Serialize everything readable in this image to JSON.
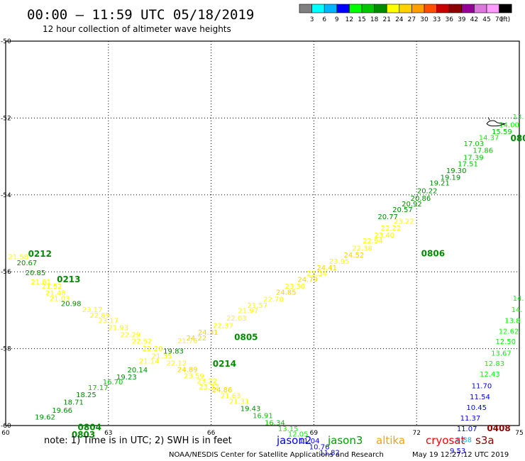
{
  "header": {
    "title": "00:00 – 11:59 UTC 05/18/2019",
    "subtitle": "12 hour collection of altimeter wave heights"
  },
  "colorbar": {
    "colors": [
      "#808080",
      "#00ffff",
      "#00b4ff",
      "#0000ff",
      "#00ff00",
      "#00c800",
      "#008c00",
      "#ffff00",
      "#ffd200",
      "#ffa000",
      "#ff5000",
      "#c80000",
      "#8c0000",
      "#960096",
      "#dc78dc",
      "#ff9bff",
      "#000000"
    ],
    "labels": [
      "3",
      "6",
      "9",
      "12",
      "15",
      "18",
      "21",
      "24",
      "27",
      "30",
      "33",
      "36",
      "39",
      "42",
      "45",
      "70"
    ],
    "unit": "(ft)"
  },
  "footer": {
    "note": "note:  1) Time is in UTC;  2) SWH is in feet",
    "satellites": [
      {
        "name": "jason2",
        "color": "#0000ff"
      },
      {
        "name": "jason3",
        "color": "#00a000"
      },
      {
        "name": "altika",
        "color": "#ffa000"
      },
      {
        "name": "cryosat",
        "color": "#ff0000"
      },
      {
        "name": "s3a",
        "color": "#8c0000"
      }
    ],
    "credit": "NOAA/NESDIS Center for Satellite Applications and Research",
    "timestamp": "May 19 12:27:12 UTC 2019"
  },
  "chart_data": {
    "type": "scatter",
    "xlim": [
      60,
      75
    ],
    "ylim": [
      -60,
      -50
    ],
    "x_ticks": [
      "60",
      "63",
      "66",
      "69",
      "72",
      "75"
    ],
    "y_ticks": [
      "-50",
      "-52",
      "-54",
      "-56",
      "-58",
      "-60"
    ],
    "grid": true,
    "observations": [
      {
        "x": 60.37,
        "y": -55.67,
        "v": "21.58"
      },
      {
        "x": 60.62,
        "y": -55.83,
        "v": "20.67"
      },
      {
        "x": 60.87,
        "y": -56.09,
        "v": "20.85"
      },
      {
        "x": 61.03,
        "y": -56.33,
        "v": "21.81"
      },
      {
        "x": 61.35,
        "y": -56.44,
        "v": "21.52"
      },
      {
        "x": 61.46,
        "y": -56.61,
        "v": "21.48"
      },
      {
        "x": 61.58,
        "y": -56.76,
        "v": "21.03"
      },
      {
        "x": 61.91,
        "y": -56.89,
        "v": "20.98"
      },
      {
        "x": 62.53,
        "y": -57.05,
        "v": "23.17"
      },
      {
        "x": 62.75,
        "y": -57.2,
        "v": "22.89"
      },
      {
        "x": 63.0,
        "y": -57.33,
        "v": "23.17"
      },
      {
        "x": 63.29,
        "y": -57.52,
        "v": "21.93"
      },
      {
        "x": 63.64,
        "y": -57.7,
        "v": "22.29"
      },
      {
        "x": 63.98,
        "y": -57.87,
        "v": "22.52"
      },
      {
        "x": 64.29,
        "y": -58.06,
        "v": "22.20"
      },
      {
        "x": 64.56,
        "y": -58.26,
        "v": "21.35"
      },
      {
        "x": 64.99,
        "y": -58.44,
        "v": "22.12"
      },
      {
        "x": 65.31,
        "y": -58.61,
        "v": "24.89"
      },
      {
        "x": 65.5,
        "y": -58.77,
        "v": "23.59"
      },
      {
        "x": 65.88,
        "y": -58.9,
        "v": "23.22"
      },
      {
        "x": 65.94,
        "y": -59.06,
        "v": "23.32"
      },
      {
        "x": 66.32,
        "y": -59.13,
        "v": "24.86"
      },
      {
        "x": 66.57,
        "y": -59.29,
        "v": "21.63"
      },
      {
        "x": 66.82,
        "y": -59.44,
        "v": "21.31"
      },
      {
        "x": 67.15,
        "y": -59.62,
        "v": "19.43"
      },
      {
        "x": 67.51,
        "y": -59.81,
        "v": "16.91"
      },
      {
        "x": 67.86,
        "y": -59.99,
        "v": "16.34"
      },
      {
        "x": 68.25,
        "y": -60.15,
        "v": "13.15"
      },
      {
        "x": 68.54,
        "y": -60.29,
        "v": "12.05"
      },
      {
        "x": 68.87,
        "y": -60.46,
        "v": "11.04"
      },
      {
        "x": 69.16,
        "y": -60.62,
        "v": "10.76"
      },
      {
        "x": 69.46,
        "y": -60.77,
        "v": "11.82"
      },
      {
        "x": 61.15,
        "y": -59.84,
        "v": "19.62"
      },
      {
        "x": 61.65,
        "y": -59.67,
        "v": "19.66"
      },
      {
        "x": 61.98,
        "y": -59.46,
        "v": "18.71"
      },
      {
        "x": 62.35,
        "y": -59.26,
        "v": "18.25"
      },
      {
        "x": 62.7,
        "y": -59.08,
        "v": "17.17"
      },
      {
        "x": 63.13,
        "y": -58.93,
        "v": "16.70"
      },
      {
        "x": 63.53,
        "y": -58.8,
        "v": "19.23"
      },
      {
        "x": 63.85,
        "y": -58.62,
        "v": "20.14"
      },
      {
        "x": 64.19,
        "y": -58.39,
        "v": "21.14"
      },
      {
        "x": 64.9,
        "y": -58.13,
        "v": "19.83"
      },
      {
        "x": 65.31,
        "y": -57.86,
        "v": "21.76"
      },
      {
        "x": 65.57,
        "y": -57.79,
        "v": "24.22"
      },
      {
        "x": 65.91,
        "y": -57.64,
        "v": "24.31"
      },
      {
        "x": 66.35,
        "y": -57.46,
        "v": "22.37"
      },
      {
        "x": 66.74,
        "y": -57.27,
        "v": "22.03"
      },
      {
        "x": 67.08,
        "y": -57.08,
        "v": "21.97"
      },
      {
        "x": 67.35,
        "y": -56.94,
        "v": "21.57"
      },
      {
        "x": 67.82,
        "y": -56.78,
        "v": "22.78"
      },
      {
        "x": 68.19,
        "y": -56.6,
        "v": "24.85"
      },
      {
        "x": 68.45,
        "y": -56.44,
        "v": "23.36"
      },
      {
        "x": 68.82,
        "y": -56.26,
        "v": "24.79"
      },
      {
        "x": 69.09,
        "y": -56.11,
        "v": "23.34"
      },
      {
        "x": 69.38,
        "y": -55.96,
        "v": "24.41"
      },
      {
        "x": 69.74,
        "y": -55.79,
        "v": "23.95"
      },
      {
        "x": 70.17,
        "y": -55.63,
        "v": "24.52"
      },
      {
        "x": 70.41,
        "y": -55.45,
        "v": "22.38"
      },
      {
        "x": 70.72,
        "y": -55.26,
        "v": "22.94"
      },
      {
        "x": 71.06,
        "y": -55.11,
        "v": "23.40"
      },
      {
        "x": 71.25,
        "y": -54.93,
        "v": "22.22"
      },
      {
        "x": 71.63,
        "y": -54.75,
        "v": "23.22"
      },
      {
        "x": 71.16,
        "y": -54.63,
        "v": "20.77"
      },
      {
        "x": 71.59,
        "y": -54.45,
        "v": "20.57"
      },
      {
        "x": 71.86,
        "y": -54.3,
        "v": "20.92"
      },
      {
        "x": 72.12,
        "y": -54.15,
        "v": "20.86"
      },
      {
        "x": 72.31,
        "y": -53.96,
        "v": "20.22"
      },
      {
        "x": 72.67,
        "y": -53.75,
        "v": "19.21"
      },
      {
        "x": 72.99,
        "y": -53.61,
        "v": "19.19"
      },
      {
        "x": 73.16,
        "y": -53.43,
        "v": "19.30"
      },
      {
        "x": 73.5,
        "y": -53.26,
        "v": "17.51"
      },
      {
        "x": 73.66,
        "y": -53.09,
        "v": "17.39"
      },
      {
        "x": 73.94,
        "y": -52.91,
        "v": "17.86"
      },
      {
        "x": 73.67,
        "y": -52.73,
        "v": "17.03"
      },
      {
        "x": 74.11,
        "y": -52.57,
        "v": "14.37"
      },
      {
        "x": 74.49,
        "y": -52.42,
        "v": "15.59"
      },
      {
        "x": 74.7,
        "y": -52.24,
        "v": "14.00"
      },
      {
        "x": 74.97,
        "y": -52.03,
        "v": "13."
      },
      {
        "x": 74.97,
        "y": -56.75,
        "v": "14."
      },
      {
        "x": 74.93,
        "y": -57.05,
        "v": "14."
      },
      {
        "x": 74.8,
        "y": -57.33,
        "v": "13.8"
      },
      {
        "x": 74.69,
        "y": -57.61,
        "v": "12.62"
      },
      {
        "x": 74.6,
        "y": -57.88,
        "v": "12.50"
      },
      {
        "x": 74.47,
        "y": -58.18,
        "v": "13.67"
      },
      {
        "x": 74.27,
        "y": -58.45,
        "v": "12.83"
      },
      {
        "x": 74.14,
        "y": -58.73,
        "v": "12.43"
      },
      {
        "x": 73.9,
        "y": -59.03,
        "v": "11.70"
      },
      {
        "x": 73.85,
        "y": -59.32,
        "v": "11.54"
      },
      {
        "x": 73.75,
        "y": -59.59,
        "v": "10.45"
      },
      {
        "x": 73.57,
        "y": -59.87,
        "v": "11.37"
      },
      {
        "x": 73.47,
        "y": -60.15,
        "v": "11.07"
      },
      {
        "x": 73.38,
        "y": -60.43,
        "v": "8.88"
      },
      {
        "x": 73.2,
        "y": -60.72,
        "v": "9.53"
      }
    ],
    "time_labels": [
      {
        "x": 61.0,
        "y": -55.61,
        "t": "0212",
        "color": "#008c00"
      },
      {
        "x": 61.84,
        "y": -56.27,
        "t": "0213",
        "color": "#008c00"
      },
      {
        "x": 67.02,
        "y": -57.78,
        "t": "0805",
        "color": "#008c00"
      },
      {
        "x": 72.48,
        "y": -55.6,
        "t": "0806",
        "color": "#008c00"
      },
      {
        "x": 75.0,
        "y": -52.6,
        "t": "080",
        "color": "#008c00"
      },
      {
        "x": 66.39,
        "y": -58.47,
        "t": "0214",
        "color": "#008c00"
      },
      {
        "x": 62.45,
        "y": -60.12,
        "t": "0804",
        "color": "#008c00"
      },
      {
        "x": 62.27,
        "y": -60.31,
        "t": "0803",
        "color": "#008c00"
      },
      {
        "x": 74.4,
        "y": -60.15,
        "t": "0408",
        "color": "#8c0000"
      }
    ],
    "land_outline": {
      "x": 74.05,
      "y": -52.15
    }
  }
}
